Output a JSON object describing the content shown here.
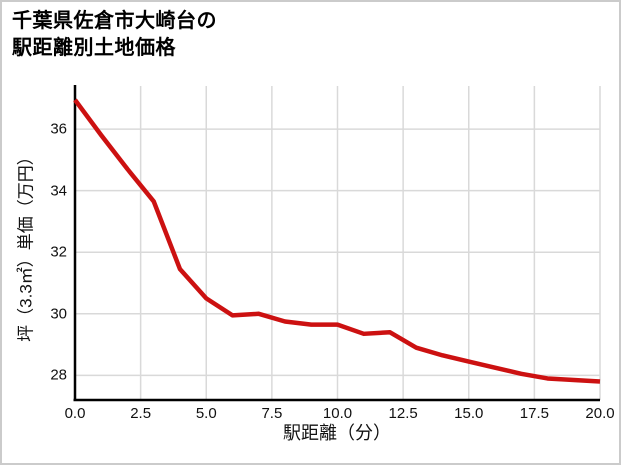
{
  "title": {
    "line1": "千葉県佐倉市大崎台の",
    "line2": "駅距離別土地価格"
  },
  "chart_data": {
    "type": "line",
    "title": "千葉県佐倉市大崎台の駅距離別土地価格",
    "xlabel": "駅距離（分）",
    "ylabel": "坪（3.3㎡）単価（万円）",
    "x": [
      0,
      1,
      2,
      3,
      4,
      5,
      6,
      7,
      8,
      9,
      10,
      11,
      12,
      13,
      14,
      15,
      16,
      17,
      18,
      19,
      20
    ],
    "values": [
      36.95,
      35.8,
      34.7,
      33.65,
      31.45,
      30.5,
      29.95,
      30.0,
      29.75,
      29.65,
      29.65,
      29.35,
      29.4,
      28.9,
      28.65,
      28.45,
      28.25,
      28.05,
      27.9,
      27.85,
      27.8
    ],
    "xlim": [
      0,
      20
    ],
    "ylim": [
      27.2,
      37.4
    ],
    "xticks": [
      0,
      2.5,
      5,
      7.5,
      10,
      12.5,
      15,
      17.5,
      20
    ],
    "xtick_labels": [
      "0.0",
      "2.5",
      "5.0",
      "7.5",
      "10.0",
      "12.5",
      "15.0",
      "17.5",
      "20.0"
    ],
    "yticks": [
      28,
      30,
      32,
      34,
      36
    ],
    "ytick_labels": [
      "28",
      "30",
      "32",
      "34",
      "36"
    ],
    "grid": true,
    "legend": false,
    "line_color": "#cc1111",
    "grid_color": "#d9d9d9",
    "axis_color": "#000000",
    "text_color": "#111111"
  }
}
